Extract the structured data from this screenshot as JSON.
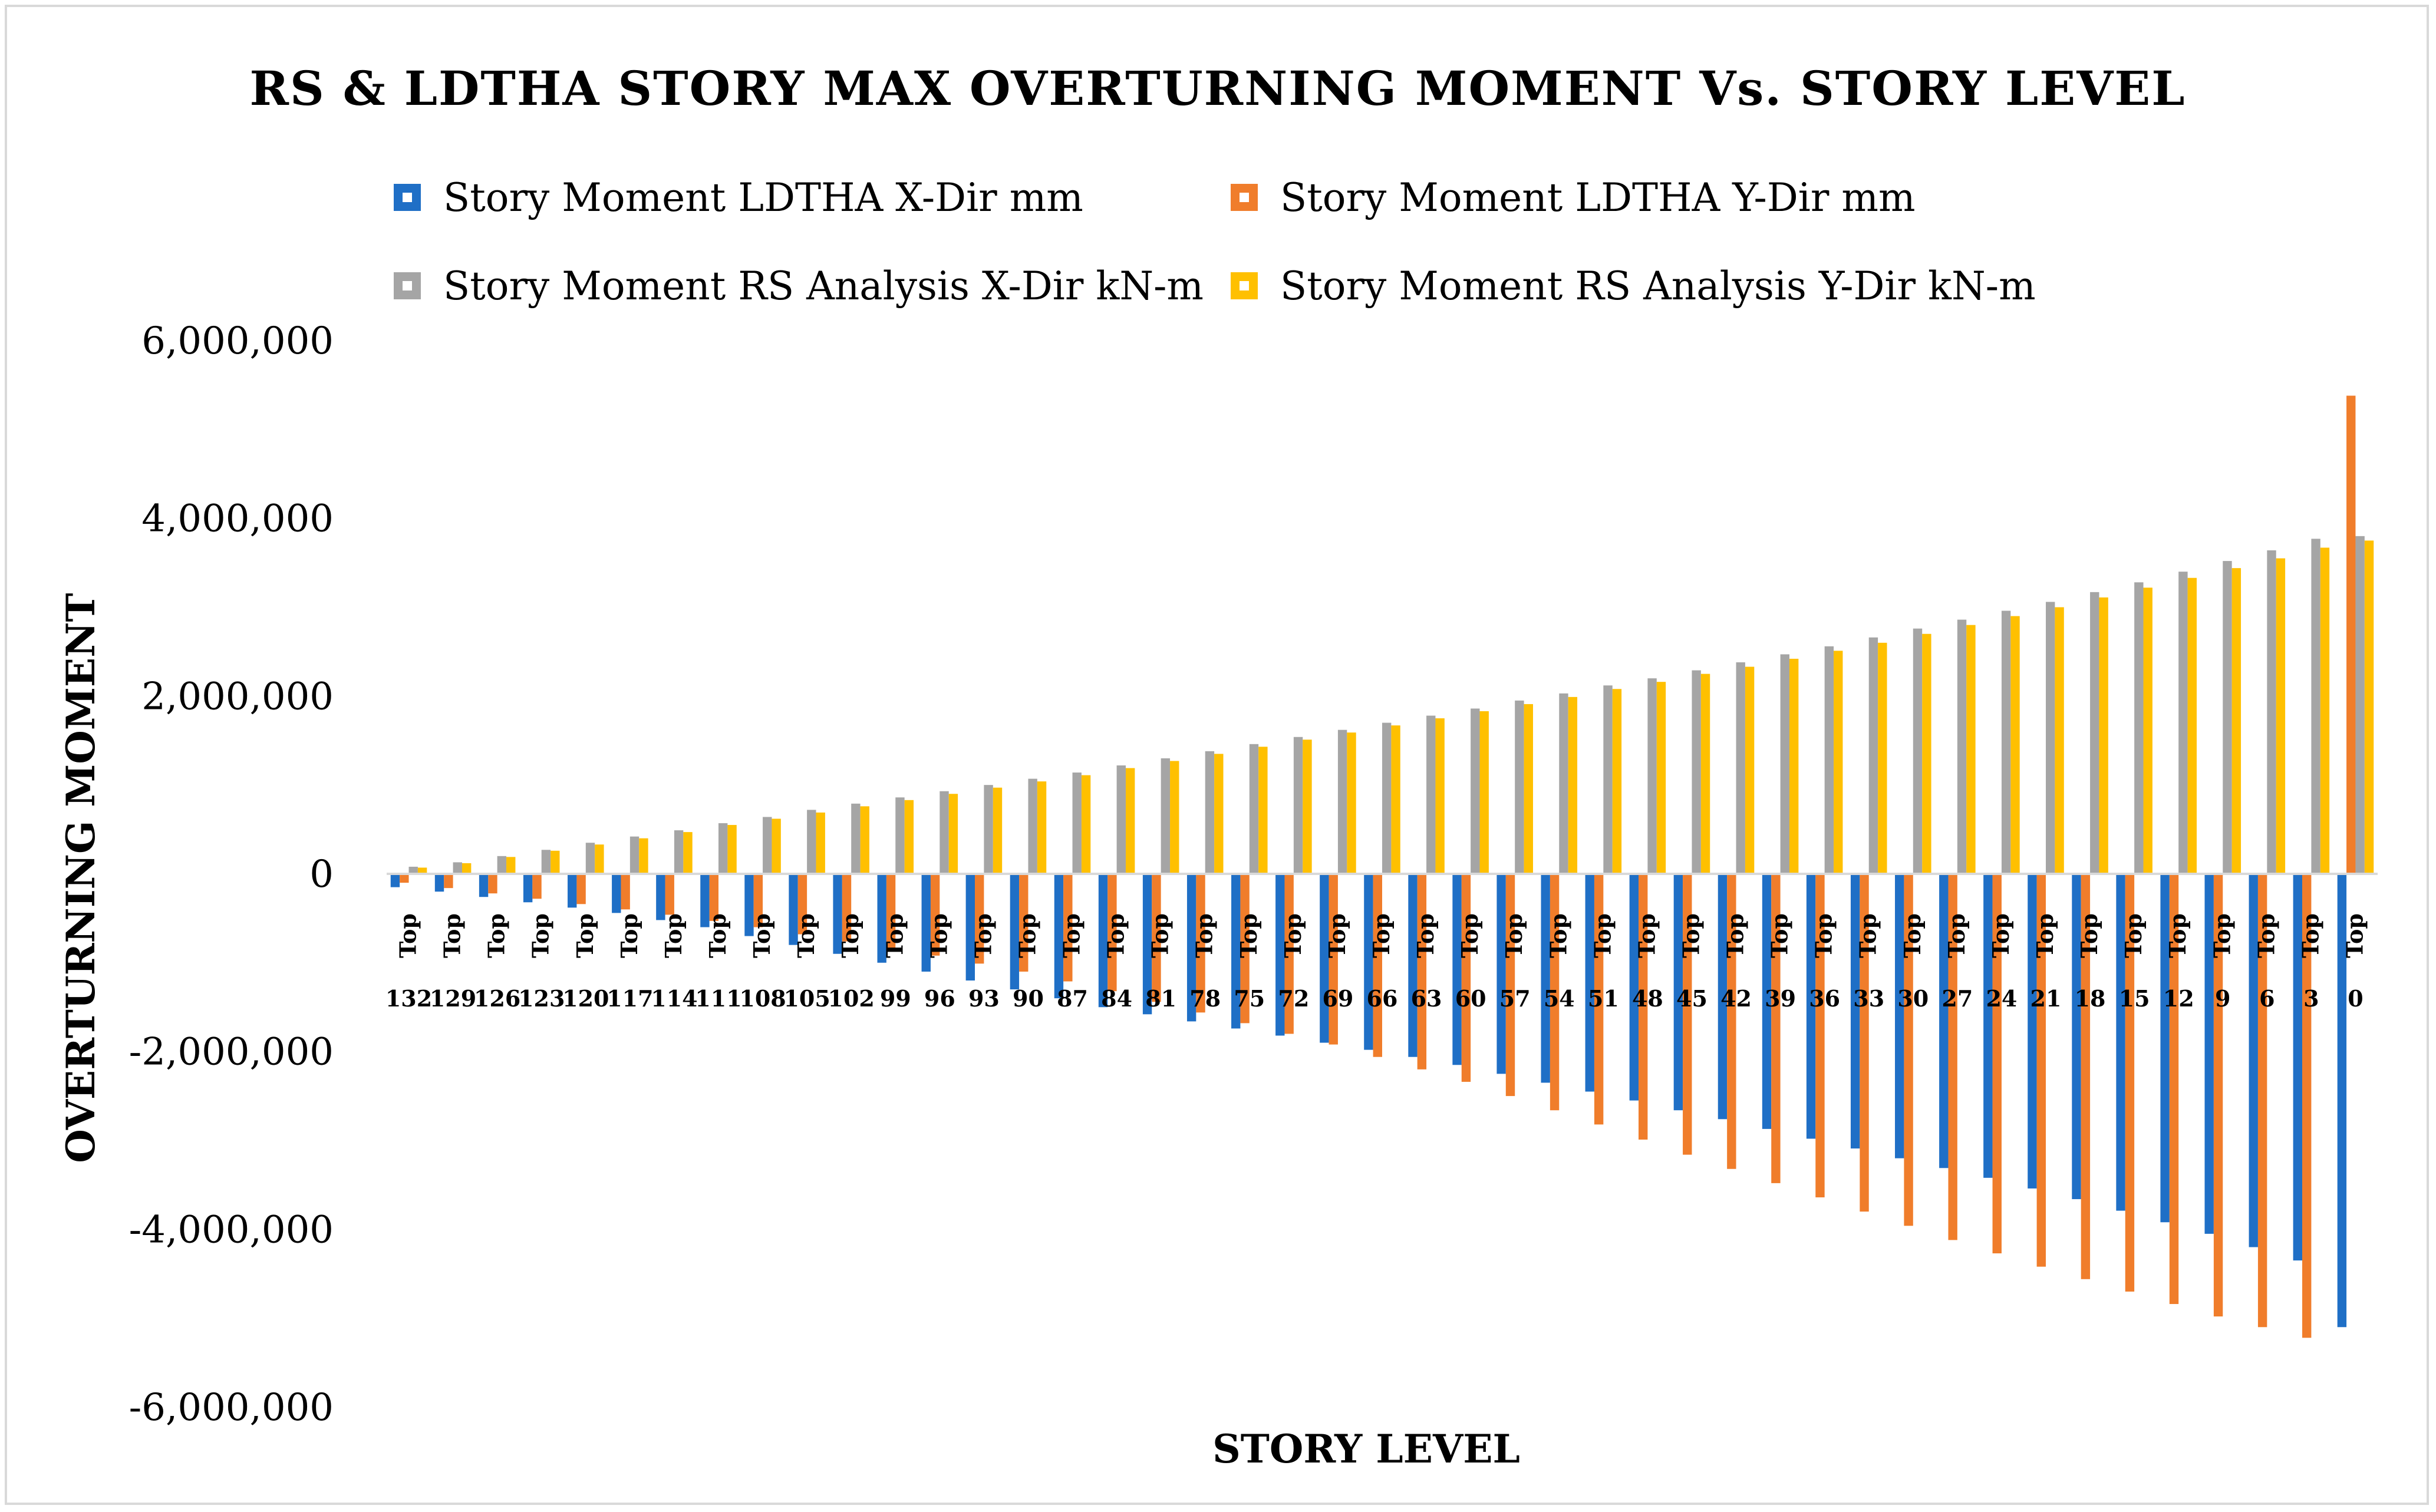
{
  "chart_data": {
    "type": "bar",
    "title": "RS & LDTHA STORY MAX OVERTURNING MOMENT Vs. STORY LEVEL",
    "xlabel": "STORY LEVEL",
    "ylabel": "OVERTURNING MOMENT",
    "ylim": [
      -6000000,
      6000000
    ],
    "yticks": [
      6000000,
      4000000,
      2000000,
      0,
      -2000000,
      -4000000,
      -6000000
    ],
    "ytick_labels": [
      "6,000,000",
      "4,000,000",
      "2,000,000",
      "0",
      "-2,000,000",
      "-4,000,000",
      "-6,000,000"
    ],
    "grid": false,
    "legend_position": "top",
    "category_prefix": "Top",
    "categories": [
      "132",
      "129",
      "126",
      "123",
      "120",
      "117",
      "114",
      "111",
      "108",
      "105",
      "102",
      "99",
      "96",
      "93",
      "90",
      "87",
      "84",
      "81",
      "78",
      "75",
      "72",
      "69",
      "66",
      "63",
      "60",
      "57",
      "54",
      "51",
      "48",
      "45",
      "42",
      "39",
      "36",
      "33",
      "30",
      "27",
      "24",
      "21",
      "18",
      "15",
      "12",
      "9",
      "6",
      "3",
      "0"
    ],
    "series": [
      {
        "name": "Story Moment LDTHA X-Dir mm",
        "color": "#1f6fc6",
        "values": [
          -150000,
          -200000,
          -260000,
          -320000,
          -380000,
          -440000,
          -520000,
          -600000,
          -700000,
          -800000,
          -900000,
          -1000000,
          -1100000,
          -1200000,
          -1300000,
          -1400000,
          -1500000,
          -1580000,
          -1660000,
          -1740000,
          -1820000,
          -1900000,
          -1980000,
          -2060000,
          -2150000,
          -2250000,
          -2350000,
          -2450000,
          -2550000,
          -2660000,
          -2760000,
          -2870000,
          -2980000,
          -3090000,
          -3200000,
          -3310000,
          -3420000,
          -3540000,
          -3660000,
          -3790000,
          -3920000,
          -4050000,
          -4200000,
          -4350000,
          -5100000
        ]
      },
      {
        "name": "Story Moment LDTHA Y-Dir mm",
        "color": "#f07d2b",
        "values": [
          -100000,
          -160000,
          -220000,
          -280000,
          -340000,
          -400000,
          -460000,
          -530000,
          -600000,
          -680000,
          -760000,
          -840000,
          -920000,
          -1010000,
          -1100000,
          -1210000,
          -1320000,
          -1440000,
          -1560000,
          -1680000,
          -1800000,
          -1920000,
          -2060000,
          -2200000,
          -2340000,
          -2500000,
          -2660000,
          -2820000,
          -2990000,
          -3160000,
          -3320000,
          -3480000,
          -3640000,
          -3800000,
          -3960000,
          -4120000,
          -4270000,
          -4420000,
          -4560000,
          -4700000,
          -4840000,
          -4980000,
          -5100000,
          -5220000,
          5380000
        ]
      },
      {
        "name": "Story Moment RS Analysis X-Dir kN-m",
        "color": "#a5a5a5",
        "values": [
          80000,
          130000,
          200000,
          270000,
          350000,
          420000,
          490000,
          570000,
          640000,
          720000,
          790000,
          860000,
          930000,
          1000000,
          1070000,
          1140000,
          1220000,
          1300000,
          1380000,
          1460000,
          1540000,
          1620000,
          1700000,
          1780000,
          1860000,
          1950000,
          2030000,
          2120000,
          2200000,
          2290000,
          2380000,
          2470000,
          2560000,
          2660000,
          2760000,
          2860000,
          2960000,
          3060000,
          3170000,
          3280000,
          3400000,
          3520000,
          3640000,
          3770000,
          3800000
        ]
      },
      {
        "name": "Story Moment RS Analysis Y-Dir kN-m",
        "color": "#ffc000",
        "values": [
          70000,
          120000,
          190000,
          260000,
          330000,
          400000,
          470000,
          550000,
          620000,
          690000,
          760000,
          830000,
          900000,
          970000,
          1040000,
          1110000,
          1190000,
          1270000,
          1350000,
          1430000,
          1510000,
          1590000,
          1670000,
          1750000,
          1830000,
          1910000,
          1990000,
          2080000,
          2160000,
          2250000,
          2330000,
          2420000,
          2510000,
          2600000,
          2700000,
          2800000,
          2900000,
          3000000,
          3110000,
          3220000,
          3330000,
          3440000,
          3550000,
          3670000,
          3750000
        ]
      }
    ]
  }
}
